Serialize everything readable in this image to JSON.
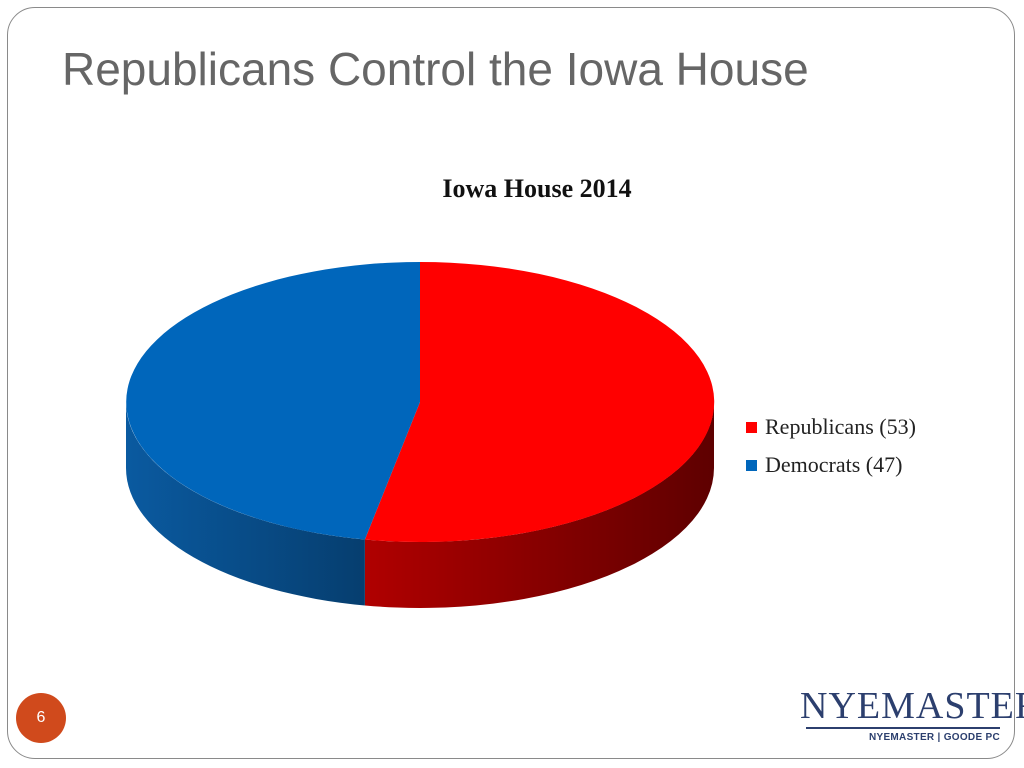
{
  "slide": {
    "title": "Republicans Control the Iowa House",
    "page_number": "6"
  },
  "logo": {
    "wordmark": "NYEMASTER",
    "subline": "NYEMASTER | GOODE PC"
  },
  "colors": {
    "republicans": "#ff0000",
    "republicans_side": "#7a0000",
    "democrats": "#0066bb",
    "democrats_side": "#0a4f8c"
  },
  "chart_data": {
    "type": "pie",
    "title": "Iowa House 2014",
    "legend_position": "right",
    "series": [
      {
        "name": "Republicans (53)",
        "value": 53
      },
      {
        "name": "Democrats (47)",
        "value": 47
      }
    ]
  }
}
